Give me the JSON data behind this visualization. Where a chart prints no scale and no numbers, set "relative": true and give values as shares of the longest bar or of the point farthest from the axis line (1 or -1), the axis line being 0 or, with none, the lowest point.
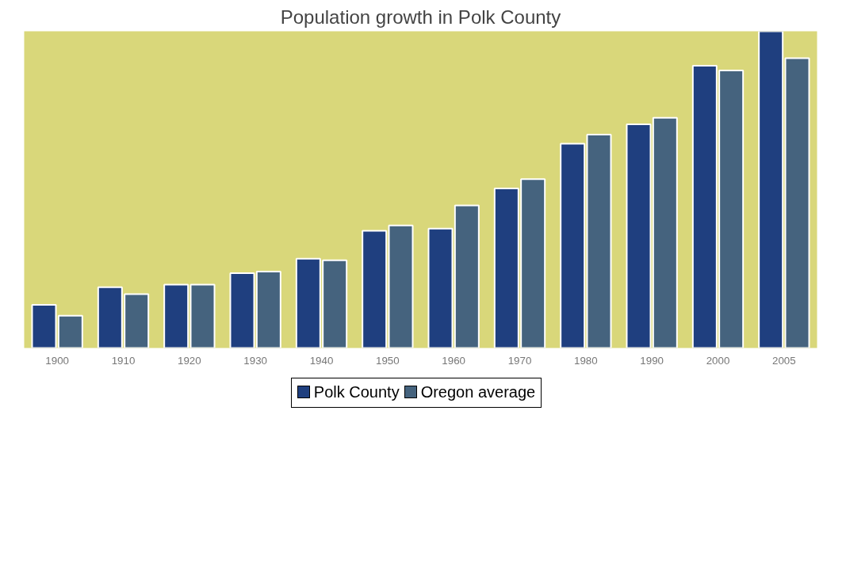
{
  "chart_data": {
    "type": "bar",
    "title": "Population growth in Polk County",
    "relative": true,
    "legend": "bottom",
    "tick_labels": "x",
    "categories": [
      "1900",
      "1910",
      "1920",
      "1930",
      "1940",
      "1950",
      "1960",
      "1970",
      "1980",
      "1990",
      "2000",
      "2005"
    ],
    "series": [
      {
        "name": "Polk County",
        "color": "#1f3f7f",
        "values": [
          0.136,
          0.192,
          0.2,
          0.236,
          0.282,
          0.37,
          0.377,
          0.504,
          0.645,
          0.706,
          0.891,
          1
        ]
      },
      {
        "name": "Oregon average",
        "color": "#45637e",
        "values": [
          0.102,
          0.17,
          0.2,
          0.241,
          0.277,
          0.387,
          0.45,
          0.533,
          0.674,
          0.727,
          0.876,
          0.915
        ]
      }
    ]
  }
}
